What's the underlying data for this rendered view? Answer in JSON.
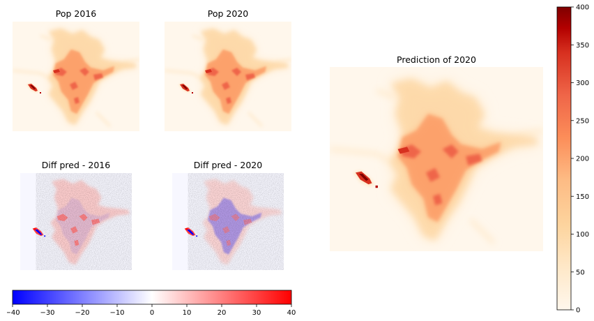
{
  "titles": {
    "pop_2016": "Pop 2016",
    "pop_2020": "Pop 2020",
    "diff_2016": "Diff pred - 2016",
    "diff_2020": "Diff pred - 2020",
    "prediction": "Prediction of 2020"
  },
  "chart_data": [
    {
      "type": "heatmap",
      "title": "Pop 2016",
      "colormap": "OrRd",
      "colors": {
        "background": "#fff7ec",
        "mid": "#fc8d59",
        "high": "#d7301f",
        "max": "#7f0000"
      }
    },
    {
      "type": "heatmap",
      "title": "Pop 2020",
      "colormap": "OrRd",
      "colors": {
        "background": "#fff7ec",
        "mid": "#fc8d59",
        "high": "#d7301f",
        "max": "#7f0000"
      }
    },
    {
      "type": "heatmap",
      "title": "Diff pred - 2016",
      "colormap": "bwr",
      "colors": {
        "negative": "#0000ff",
        "zero": "#ffffff",
        "positive": "#ff0000"
      }
    },
    {
      "type": "heatmap",
      "title": "Diff pred - 2020",
      "colormap": "bwr",
      "colors": {
        "negative": "#0000ff",
        "zero": "#ffffff",
        "positive": "#ff0000"
      }
    },
    {
      "type": "heatmap",
      "title": "Prediction of 2020",
      "colormap": "OrRd",
      "colors": {
        "background": "#fff7ec",
        "mid": "#fc8d59",
        "high": "#d7301f",
        "max": "#7f0000"
      }
    }
  ],
  "colorbars": {
    "population": {
      "orientation": "vertical",
      "range": [
        0,
        400
      ],
      "ticks": [
        0,
        50,
        100,
        150,
        200,
        250,
        300,
        350,
        400
      ],
      "colormap": "OrRd"
    },
    "difference": {
      "orientation": "horizontal",
      "range": [
        -40,
        40
      ],
      "ticks": [
        -40,
        -30,
        -20,
        -10,
        0,
        10,
        20,
        30,
        40
      ],
      "tick_labels": [
        "−40",
        "−30",
        "−20",
        "−10",
        "0",
        "10",
        "20",
        "30",
        "40"
      ],
      "colormap": "bwr"
    }
  }
}
